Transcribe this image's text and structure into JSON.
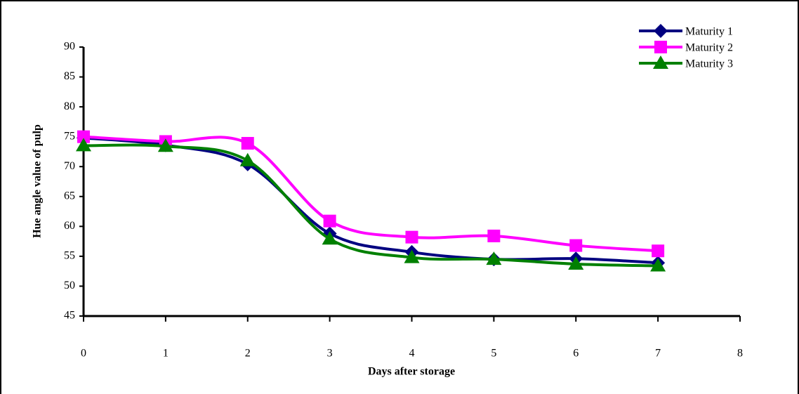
{
  "chart_data": {
    "type": "line",
    "x_label": "Days after storage",
    "y_label": "Hue angle value of pulp",
    "x": [
      0,
      1,
      2,
      3,
      4,
      5,
      6,
      7
    ],
    "series": [
      {
        "name": "Maturity 1",
        "color": "#000080",
        "marker": "diamond",
        "values": [
          74.8,
          73.6,
          70.4,
          58.8,
          55.7,
          54.5,
          54.6,
          53.9
        ]
      },
      {
        "name": "Maturity 2",
        "color": "#ff00ff",
        "marker": "square",
        "values": [
          75,
          74.2,
          73.9,
          60.9,
          58.2,
          58.4,
          56.8,
          55.9
        ]
      },
      {
        "name": "Maturity 3",
        "color": "#008000",
        "marker": "triangle",
        "values": [
          73.5,
          73.4,
          71,
          57.9,
          54.8,
          54.5,
          53.7,
          53.4
        ]
      }
    ],
    "xlim": [
      0,
      8
    ],
    "xticks": [
      0,
      1,
      2,
      3,
      4,
      5,
      6,
      7,
      8
    ],
    "ylim": [
      45,
      90
    ],
    "yticks": [
      45,
      50,
      55,
      60,
      65,
      70,
      75,
      80,
      85,
      90
    ],
    "smooth": true,
    "legend": "top-right"
  }
}
